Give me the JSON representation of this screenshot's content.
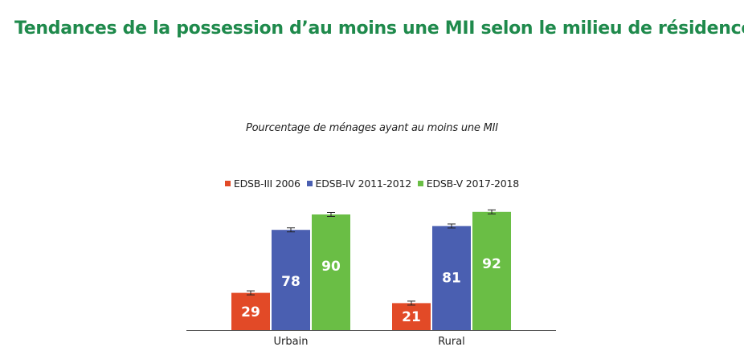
{
  "title": "Tendances de la possession d’au moins une MII selon le milieu de résidence",
  "colors": {
    "title": "#1f8a4c",
    "series": [
      "#e24a27",
      "#4a5fb1",
      "#6abe45"
    ]
  },
  "chart_data": {
    "type": "bar",
    "title": "Pourcentage de ménages ayant au moins une MII",
    "xlabel": "",
    "ylabel": "",
    "ylim": [
      0,
      100
    ],
    "grid": false,
    "legend_position": "top-center",
    "error_bars": true,
    "categories": [
      "Urbain",
      "Rural"
    ],
    "series": [
      {
        "name": "EDSB-III 2006",
        "values": [
          29,
          21
        ],
        "color": "#e24a27"
      },
      {
        "name": "EDSB-IV 2011-2012",
        "values": [
          78,
          81
        ],
        "color": "#4a5fb1"
      },
      {
        "name": "EDSB-V 2017-2018",
        "values": [
          90,
          92
        ],
        "color": "#6abe45"
      }
    ]
  }
}
